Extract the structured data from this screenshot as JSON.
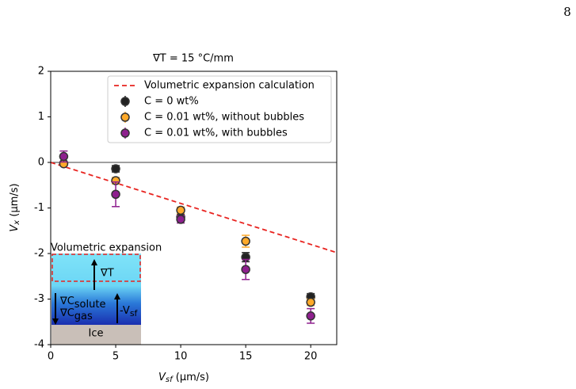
{
  "page_number": "8",
  "chart_data": {
    "type": "scatter",
    "title": "∇T = 15 °C/mm",
    "xlabel": {
      "main": "V",
      "sub": "sf",
      "unit": " (µm/s)"
    },
    "ylabel": {
      "main": "V",
      "sub": "x",
      "unit": " (µm/s)"
    },
    "xlim": [
      0,
      22
    ],
    "ylim": [
      -4,
      2
    ],
    "xticks": [
      0,
      5,
      10,
      15,
      20
    ],
    "yticks": [
      2,
      1,
      0,
      -1,
      -2,
      -3,
      -4
    ],
    "zero_line": true,
    "line": {
      "name": "Volumetric expansion calculation",
      "color": "#e8231f",
      "x": [
        0,
        22
      ],
      "values": [
        0,
        -1.98
      ]
    },
    "series": [
      {
        "name": "C = 0 wt%",
        "color": "#222222",
        "x": [
          1,
          5,
          10,
          15,
          20
        ],
        "values": [
          -0.02,
          -0.14,
          -1.2,
          -2.08,
          -2.95
        ],
        "errors": [
          0.04,
          0.07,
          0.07,
          0.1,
          0.07
        ]
      },
      {
        "name": "C = 0.01 wt%, without bubbles",
        "color": "#ffa929",
        "x": [
          1,
          5,
          10,
          15,
          20
        ],
        "values": [
          -0.03,
          -0.4,
          -1.05,
          -1.73,
          -3.07
        ],
        "errors": [
          0.04,
          0.07,
          0.07,
          0.13,
          0.07
        ]
      },
      {
        "name": "C = 0.01 wt%, with bubbles",
        "color": "#8e1f8e",
        "x": [
          1,
          5,
          10,
          15,
          20
        ],
        "values": [
          0.13,
          -0.7,
          -1.25,
          -2.35,
          -3.37
        ],
        "errors": [
          0.12,
          0.27,
          0.08,
          0.22,
          0.16
        ]
      }
    ],
    "legend": "upper right",
    "inset": {
      "title": "Volumetric expansion",
      "grad_t": "∇T",
      "grad_c1": "∇C",
      "grad_c1_sub": "solute",
      "grad_c2": "∇C",
      "grad_c2_sub": "gas",
      "v": "-V",
      "v_sub": "sf",
      "ice": "Ice"
    }
  }
}
